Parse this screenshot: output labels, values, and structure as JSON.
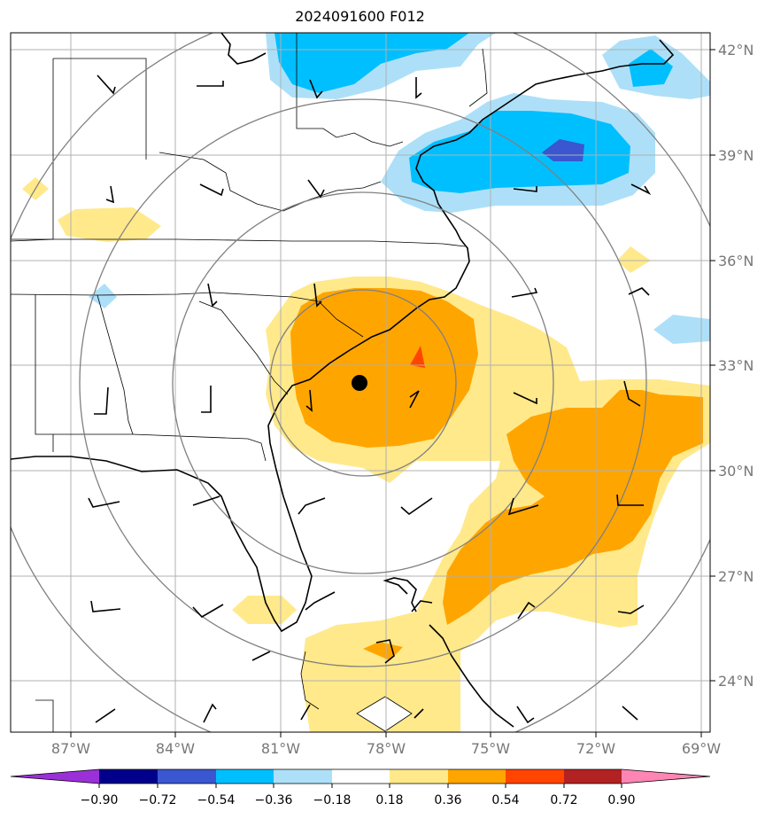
{
  "title": "2024091600 F012",
  "axes": {
    "lat_labels": [
      "42°N",
      "39°N",
      "36°N",
      "33°N",
      "30°N",
      "27°N",
      "24°N"
    ],
    "lon_labels": [
      "87°W",
      "84°W",
      "81°W",
      "78°W",
      "75°W",
      "72°W",
      "69°W"
    ]
  },
  "colorbar": {
    "ticks": [
      "−0.90",
      "−0.72",
      "−0.54",
      "−0.36",
      "−0.18",
      "0.18",
      "0.36",
      "0.54",
      "0.72",
      "0.90"
    ],
    "colors": [
      "#9b30d9",
      "#00008b",
      "#3a56d0",
      "#00bfff",
      "#ade0f8",
      "#ffffff",
      "#ffe98b",
      "#ffa500",
      "#ff4500",
      "#b22222",
      "#ff85b4"
    ]
  },
  "center_marker": "storm-center",
  "colors": {
    "gridline": "#b0b0b0",
    "range_ring": "#808080",
    "label": "#777777"
  }
}
